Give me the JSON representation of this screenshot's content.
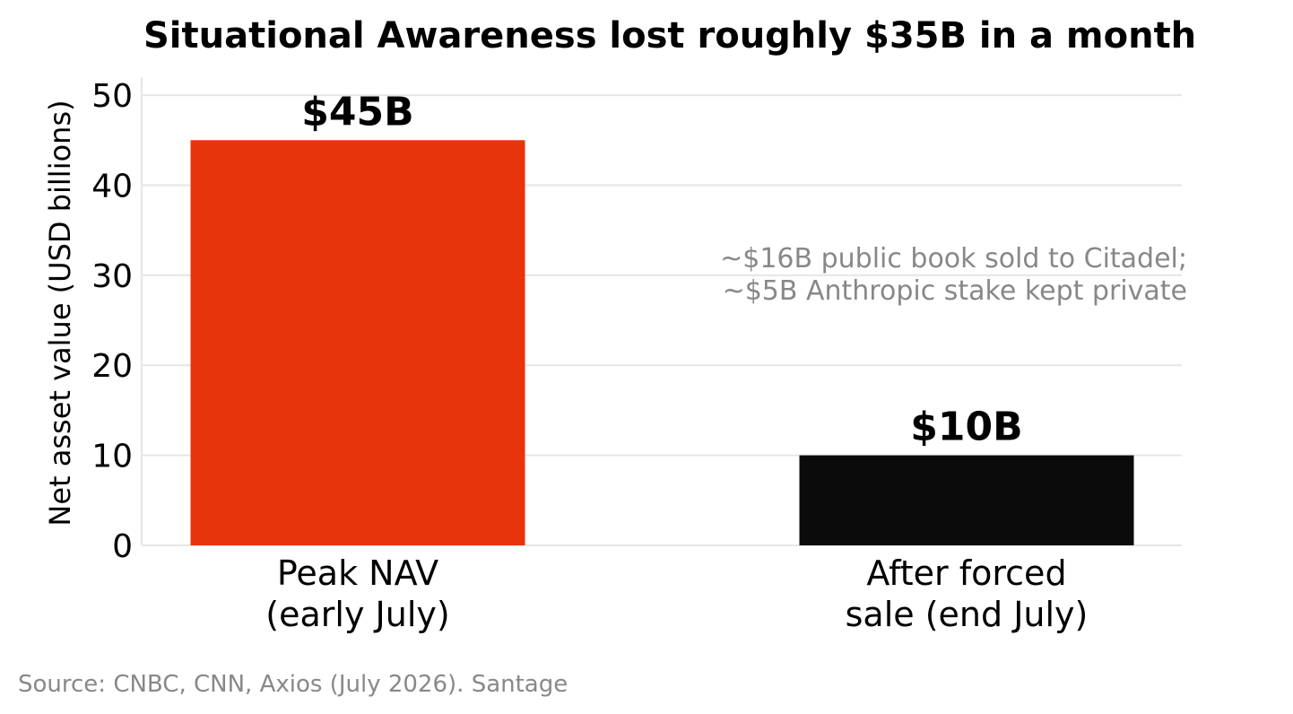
{
  "chart_data": {
    "type": "bar",
    "title": "Situational Awareness lost roughly $35B in a month",
    "ylabel": "Net asset value (USD billions)",
    "xlabel": "",
    "categories": [
      [
        "Peak NAV",
        "(early July)"
      ],
      [
        "After forced",
        "sale (end July)"
      ]
    ],
    "values": [
      45,
      10
    ],
    "data_labels": [
      "$45B",
      "$10B"
    ],
    "bar_colors": [
      "#e8340c",
      "#0b0b0b"
    ],
    "ylim": [
      0,
      52
    ],
    "yticks": [
      0,
      10,
      20,
      30,
      40,
      50
    ],
    "grid": "horizontal",
    "grid_color": "#e6e6e6",
    "annotation": [
      "~$16B public book sold to Citadel;",
      "~$5B Anthropic stake kept private"
    ],
    "source": "Source: CNBC, CNN, Axios (July 2026). Santage"
  }
}
